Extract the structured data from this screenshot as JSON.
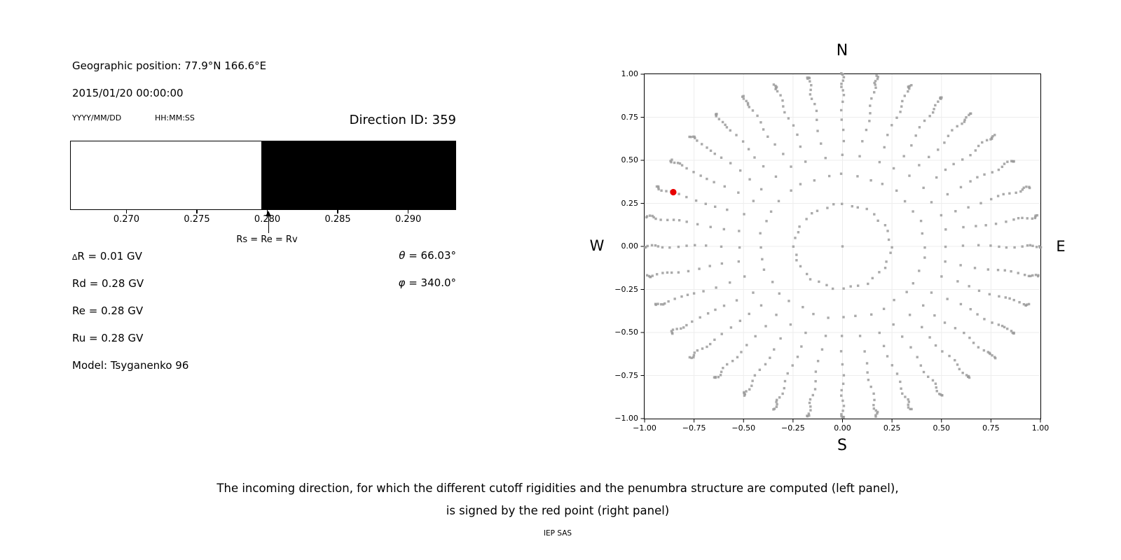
{
  "left_panel": {
    "geo_position": "Geographic position: 77.9°N 166.6°E",
    "datetime": "2015/01/20 00:00:00",
    "date_format": "YYYY/MM/DD",
    "time_format": "HH:MM:SS",
    "direction_id": "Direction ID: 359",
    "arrow_label": "Rs = Re = Rv",
    "delta_line": {
      "symbol": "∆",
      "rest": "R = 0.01 GV"
    },
    "lines": [
      "Rd = 0.28 GV",
      "Re = 0.28 GV",
      "Ru = 0.28 GV",
      "Model: Tsyganenko 96"
    ],
    "theta_line": {
      "symbol": "θ",
      "rest": " = 66.03°"
    },
    "phi_line": {
      "symbol": "φ",
      "rest": " = 340.0°"
    }
  },
  "caption": {
    "line1": "The incoming direction, for which the different cutoff rigidities and the penumbra structure are computed (left panel),",
    "line2": "is signed by the red point (right panel)",
    "credit": "IEP SAS"
  },
  "chart_data": [
    {
      "type": "bar",
      "description": "Penumbra structure bar: white = allowed rigidities, black = forbidden, boundary at Rs = Re = Rv",
      "x_range": [
        0.266,
        0.2934
      ],
      "ticks": [
        0.27,
        0.275,
        0.28,
        0.285,
        0.29
      ],
      "segments": [
        {
          "from": 0.266,
          "to": 0.2796,
          "color": "#ffffff",
          "meaning": "allowed"
        },
        {
          "from": 0.2796,
          "to": 0.2934,
          "color": "#000000",
          "meaning": "forbidden"
        }
      ],
      "annotation": {
        "text": "Rs = Re = Rv",
        "x": 0.2801
      },
      "unit": "GV"
    },
    {
      "type": "scatter",
      "description": "Grid of incoming directions (gray dots, 36 azimuths every 10 deg, radii = sin(zenith)); red point marks selected direction ID 359",
      "xlim": [
        -1,
        1
      ],
      "ylim": [
        -1,
        1
      ],
      "xticks": [
        -1,
        -0.75,
        -0.5,
        -0.25,
        0,
        0.25,
        0.5,
        0.75,
        1
      ],
      "yticks": [
        -1,
        -0.75,
        -0.5,
        -0.25,
        0,
        0.25,
        0.5,
        0.75,
        1
      ],
      "compass": {
        "top": "N",
        "bottom": "S",
        "left": "W",
        "right": "E"
      },
      "grid": true,
      "dot_color": "#9b9b9b",
      "azimuth_start_deg": 0,
      "azimuth_step_deg": 10,
      "azimuth_count": 36,
      "ring_radii": [
        0.243,
        0.415,
        0.527,
        0.613,
        0.683,
        0.742,
        0.792,
        0.835,
        0.872,
        0.903,
        0.929,
        0.951,
        0.968,
        0.982,
        0.992,
        0.998,
        1.0
      ],
      "center_point": [
        0,
        0
      ],
      "red_point": {
        "x": -0.855,
        "y": 0.315,
        "color": "#e80000"
      }
    }
  ]
}
